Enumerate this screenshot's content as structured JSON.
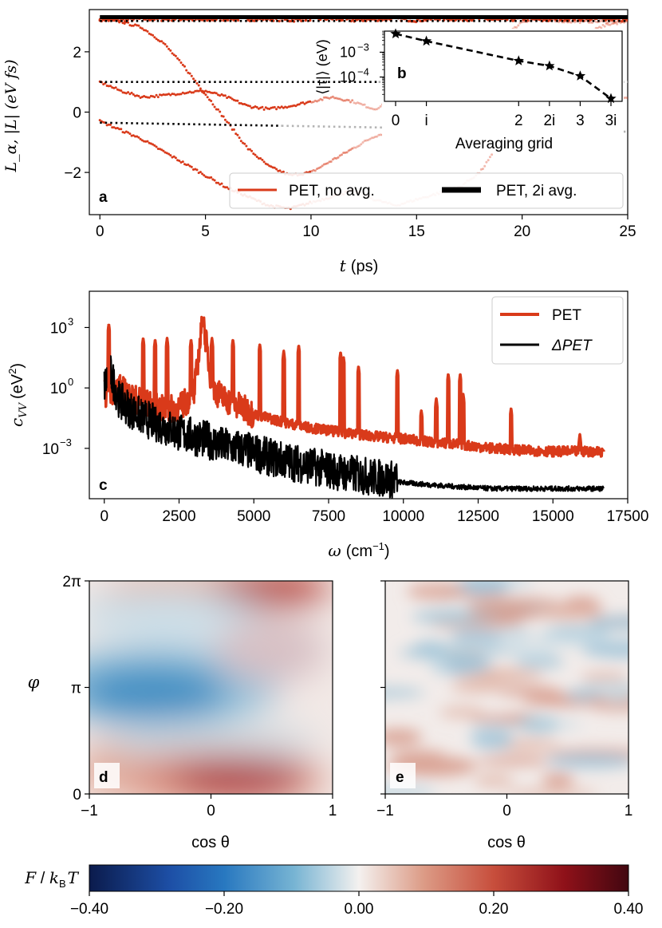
{
  "chart_data": [
    {
      "panel": "a",
      "type": "line",
      "xlabel_var": "t",
      "xlabel_unit": "(ps)",
      "ylabel": "L_α, |L| (eV fs)",
      "xlim": [
        -0.5,
        25
      ],
      "ylim": [
        -3.4,
        3.4
      ],
      "xticks": [
        "0",
        "5",
        "10",
        "15",
        "20",
        "25"
      ],
      "yticks": [
        "−2",
        "0",
        "2"
      ],
      "legend": {
        "placement": "lower-right",
        "entries": [
          "PET, no avg.",
          "PET, 2i avg."
        ]
      },
      "series": [
        {
          "name": "PET, no avg.",
          "style": "dotted-markers",
          "color": "#d93a1a",
          "x": [
            0,
            1,
            2,
            3,
            4,
            5,
            6,
            7,
            8,
            9,
            10,
            11,
            12,
            13,
            14,
            15,
            16,
            17,
            18,
            19,
            20,
            21,
            22,
            23,
            24,
            25
          ],
          "traces": [
            [
              3.1,
              3.05,
              3.1,
              3.08,
              3.1,
              3.05,
              3.1,
              3.08,
              3.1,
              3.05,
              3.1,
              3.1,
              3.05,
              3.08,
              3.1,
              3.05,
              3.1,
              3.08,
              3.1,
              3.05,
              3.1,
              3.05,
              3.1,
              3.08,
              3.1,
              3.05
            ],
            [
              3.05,
              3.0,
              2.8,
              2.3,
              1.5,
              0.6,
              -0.3,
              -1.2,
              -1.8,
              -2.1,
              -2.0,
              -1.6,
              -1.2,
              -0.8,
              -0.6,
              -0.4,
              0.0,
              0.8,
              1.6,
              2.4,
              3.0,
              3.1,
              3.0,
              3.0,
              3.0,
              3.0
            ],
            [
              1.0,
              0.7,
              0.5,
              0.55,
              0.65,
              0.7,
              0.5,
              0.2,
              0.1,
              0.2,
              0.35,
              0.5,
              0.35,
              0.1,
              0.4,
              0.7,
              0.7,
              0.5,
              0.3,
              0.6,
              0.8,
              0.9,
              0.7,
              0.6,
              0.5,
              0.5
            ],
            [
              -0.3,
              -0.6,
              -0.9,
              -1.3,
              -1.7,
              -2.1,
              -2.5,
              -2.8,
              -3.1,
              -3.2,
              -3.0,
              -2.8,
              -2.6,
              -2.9,
              -3.1,
              -2.9,
              -2.7,
              -2.5,
              -2.0,
              -1.0,
              0.0,
              1.0,
              2.0,
              2.6,
              2.9,
              3.0
            ]
          ]
        },
        {
          "name": "PET, 2i avg.",
          "style": "solid-thick",
          "color": "#000000",
          "x": [
            0,
            25
          ],
          "values": [
            3.15,
            3.15
          ]
        },
        {
          "name": "",
          "style": "dotted-black-then-grey",
          "x": [
            0,
            25
          ],
          "traces": [
            [
              1.0,
              1.0
            ],
            [
              -0.35,
              -0.65
            ],
            [
              3.02,
              3.02
            ]
          ]
        }
      ]
    },
    {
      "panel": "b",
      "type": "line",
      "inset_of": "a",
      "xlabel": "Averaging grid",
      "ylabel_tex": "⟨|τ|⟩ (eV)",
      "yscale": "log",
      "yticks": [
        "10",
        "10"
      ],
      "ytick_exponents": [
        "−3",
        "−4"
      ],
      "categories": [
        "0",
        "i",
        "2",
        "2i",
        "3",
        "3i"
      ],
      "values": [
        0.0055,
        0.0028,
        0.00045,
        0.00028,
        0.00011,
        1.35e-05
      ],
      "color": "#000000",
      "marker": "star",
      "line": "dashed"
    },
    {
      "panel": "c",
      "type": "line",
      "xlabel_var": "ω",
      "xlabel_unit": "(cm",
      "xlabel_unit_exp": "−1",
      "ylabel_var": "c",
      "ylabel_sub": "VV",
      "ylabel_unit": "(eV",
      "ylabel_unit_exp": "2",
      "yscale": "log",
      "xlim": [
        -500,
        17500
      ],
      "xticks": [
        "0",
        "2500",
        "5000",
        "7500",
        "10000",
        "12500",
        "15000",
        "17500"
      ],
      "yticks": [
        "10",
        "10",
        "10"
      ],
      "ytick_exponents": [
        "3",
        "0",
        "−3"
      ],
      "legend": {
        "placement": "top-right",
        "entries": [
          "PET",
          "ΔPET"
        ]
      },
      "series": [
        {
          "name": "PET",
          "color": "#d93a1a",
          "x": [
            0,
            500,
            1000,
            1500,
            2000,
            2500,
            3000,
            3300,
            3600,
            4000,
            5000,
            6000,
            7000,
            8000,
            9000,
            10000,
            11000,
            12000,
            13000,
            14000,
            15000,
            16000,
            16700
          ],
          "values": [
            0.5,
            1.0,
            0.3,
            0.15,
            0.08,
            0.1,
            0.5,
            3000,
            1.0,
            0.3,
            0.05,
            0.02,
            0.01,
            0.006,
            0.004,
            0.003,
            0.002,
            0.0015,
            0.001,
            0.0008,
            0.0007,
            0.0007,
            0.0007
          ],
          "peaks": [
            [
              150,
              1500
            ],
            [
              1300,
              300
            ],
            [
              1700,
              250
            ],
            [
              2100,
              300
            ],
            [
              2900,
              250
            ],
            [
              3300,
              3000
            ],
            [
              3600,
              300
            ],
            [
              4300,
              250
            ],
            [
              5200,
              150
            ],
            [
              6000,
              70
            ],
            [
              6500,
              130
            ],
            [
              7900,
              60
            ],
            [
              8000,
              35
            ],
            [
              8500,
              12
            ],
            [
              9800,
              8
            ],
            [
              10600,
              0.08
            ],
            [
              11100,
              0.3
            ],
            [
              11500,
              5
            ],
            [
              11900,
              5
            ],
            [
              12000,
              0.5
            ],
            [
              13600,
              0.1
            ],
            [
              15900,
              0.005
            ],
            [
              16700,
              0.0008
            ]
          ]
        },
        {
          "name": "ΔPET",
          "color": "#000000",
          "x": [
            0,
            200,
            500,
            1000,
            1500,
            2000,
            2500,
            3000,
            3500,
            4000,
            4500,
            5000,
            5500,
            6000,
            7000,
            8000,
            9000,
            10000,
            11000,
            12000,
            13000,
            14000,
            15000,
            16000,
            16700
          ],
          "values": [
            1.0,
            5.0,
            0.2,
            0.05,
            0.02,
            0.01,
            0.005,
            0.003,
            0.002,
            0.001,
            0.0008,
            0.0005,
            0.0003,
            0.0002,
            0.0001,
            5e-05,
            3e-05,
            2e-05,
            1.5e-05,
            1.2e-05,
            1e-05,
            1e-05,
            1e-05,
            1e-05,
            1e-05
          ]
        }
      ]
    },
    {
      "panel": "d",
      "type": "heatmap",
      "xlabel": "cos θ",
      "ylabel": "φ",
      "xticks": [
        "−1",
        "0",
        "1"
      ],
      "yticks": [
        "0",
        "π",
        "2π"
      ],
      "colormap": "diverging blue-white-red",
      "description_values": {
        "low_region": "around cos θ −0.4, φ ≈ π, about −0.25",
        "high_regions": [
          "cos θ ≈ 0.2, φ ≈ 0.1π, about +0.3",
          "cos θ ≈ 0.4, φ ≈ 2π, about +0.3"
        ]
      }
    },
    {
      "panel": "e",
      "type": "heatmap",
      "xlabel": "cos θ",
      "ylabel": "",
      "xticks": [
        "−1",
        "0",
        "1"
      ],
      "colormap": "diverging blue-white-red",
      "description_values": {
        "range": "about −0.1 to +0.1, no structure"
      }
    },
    {
      "panel": "colorbar",
      "type": "heatmap",
      "label_var": "F",
      "label_sep": " / ",
      "label_k": "k",
      "label_k_sub": "B",
      "label_T": "T",
      "range": [
        -0.4,
        0.4
      ],
      "ticks": [
        "−0.40",
        "−0.20",
        "0.00",
        "0.20",
        "0.40"
      ]
    }
  ],
  "panel_labels": {
    "a": "a",
    "b": "b",
    "c": "c",
    "d": "d",
    "e": "e"
  },
  "colors": {
    "pet": "#d93a1a",
    "delta_pet": "#000000",
    "avg_dotted_grey": "#b3b3b3"
  }
}
